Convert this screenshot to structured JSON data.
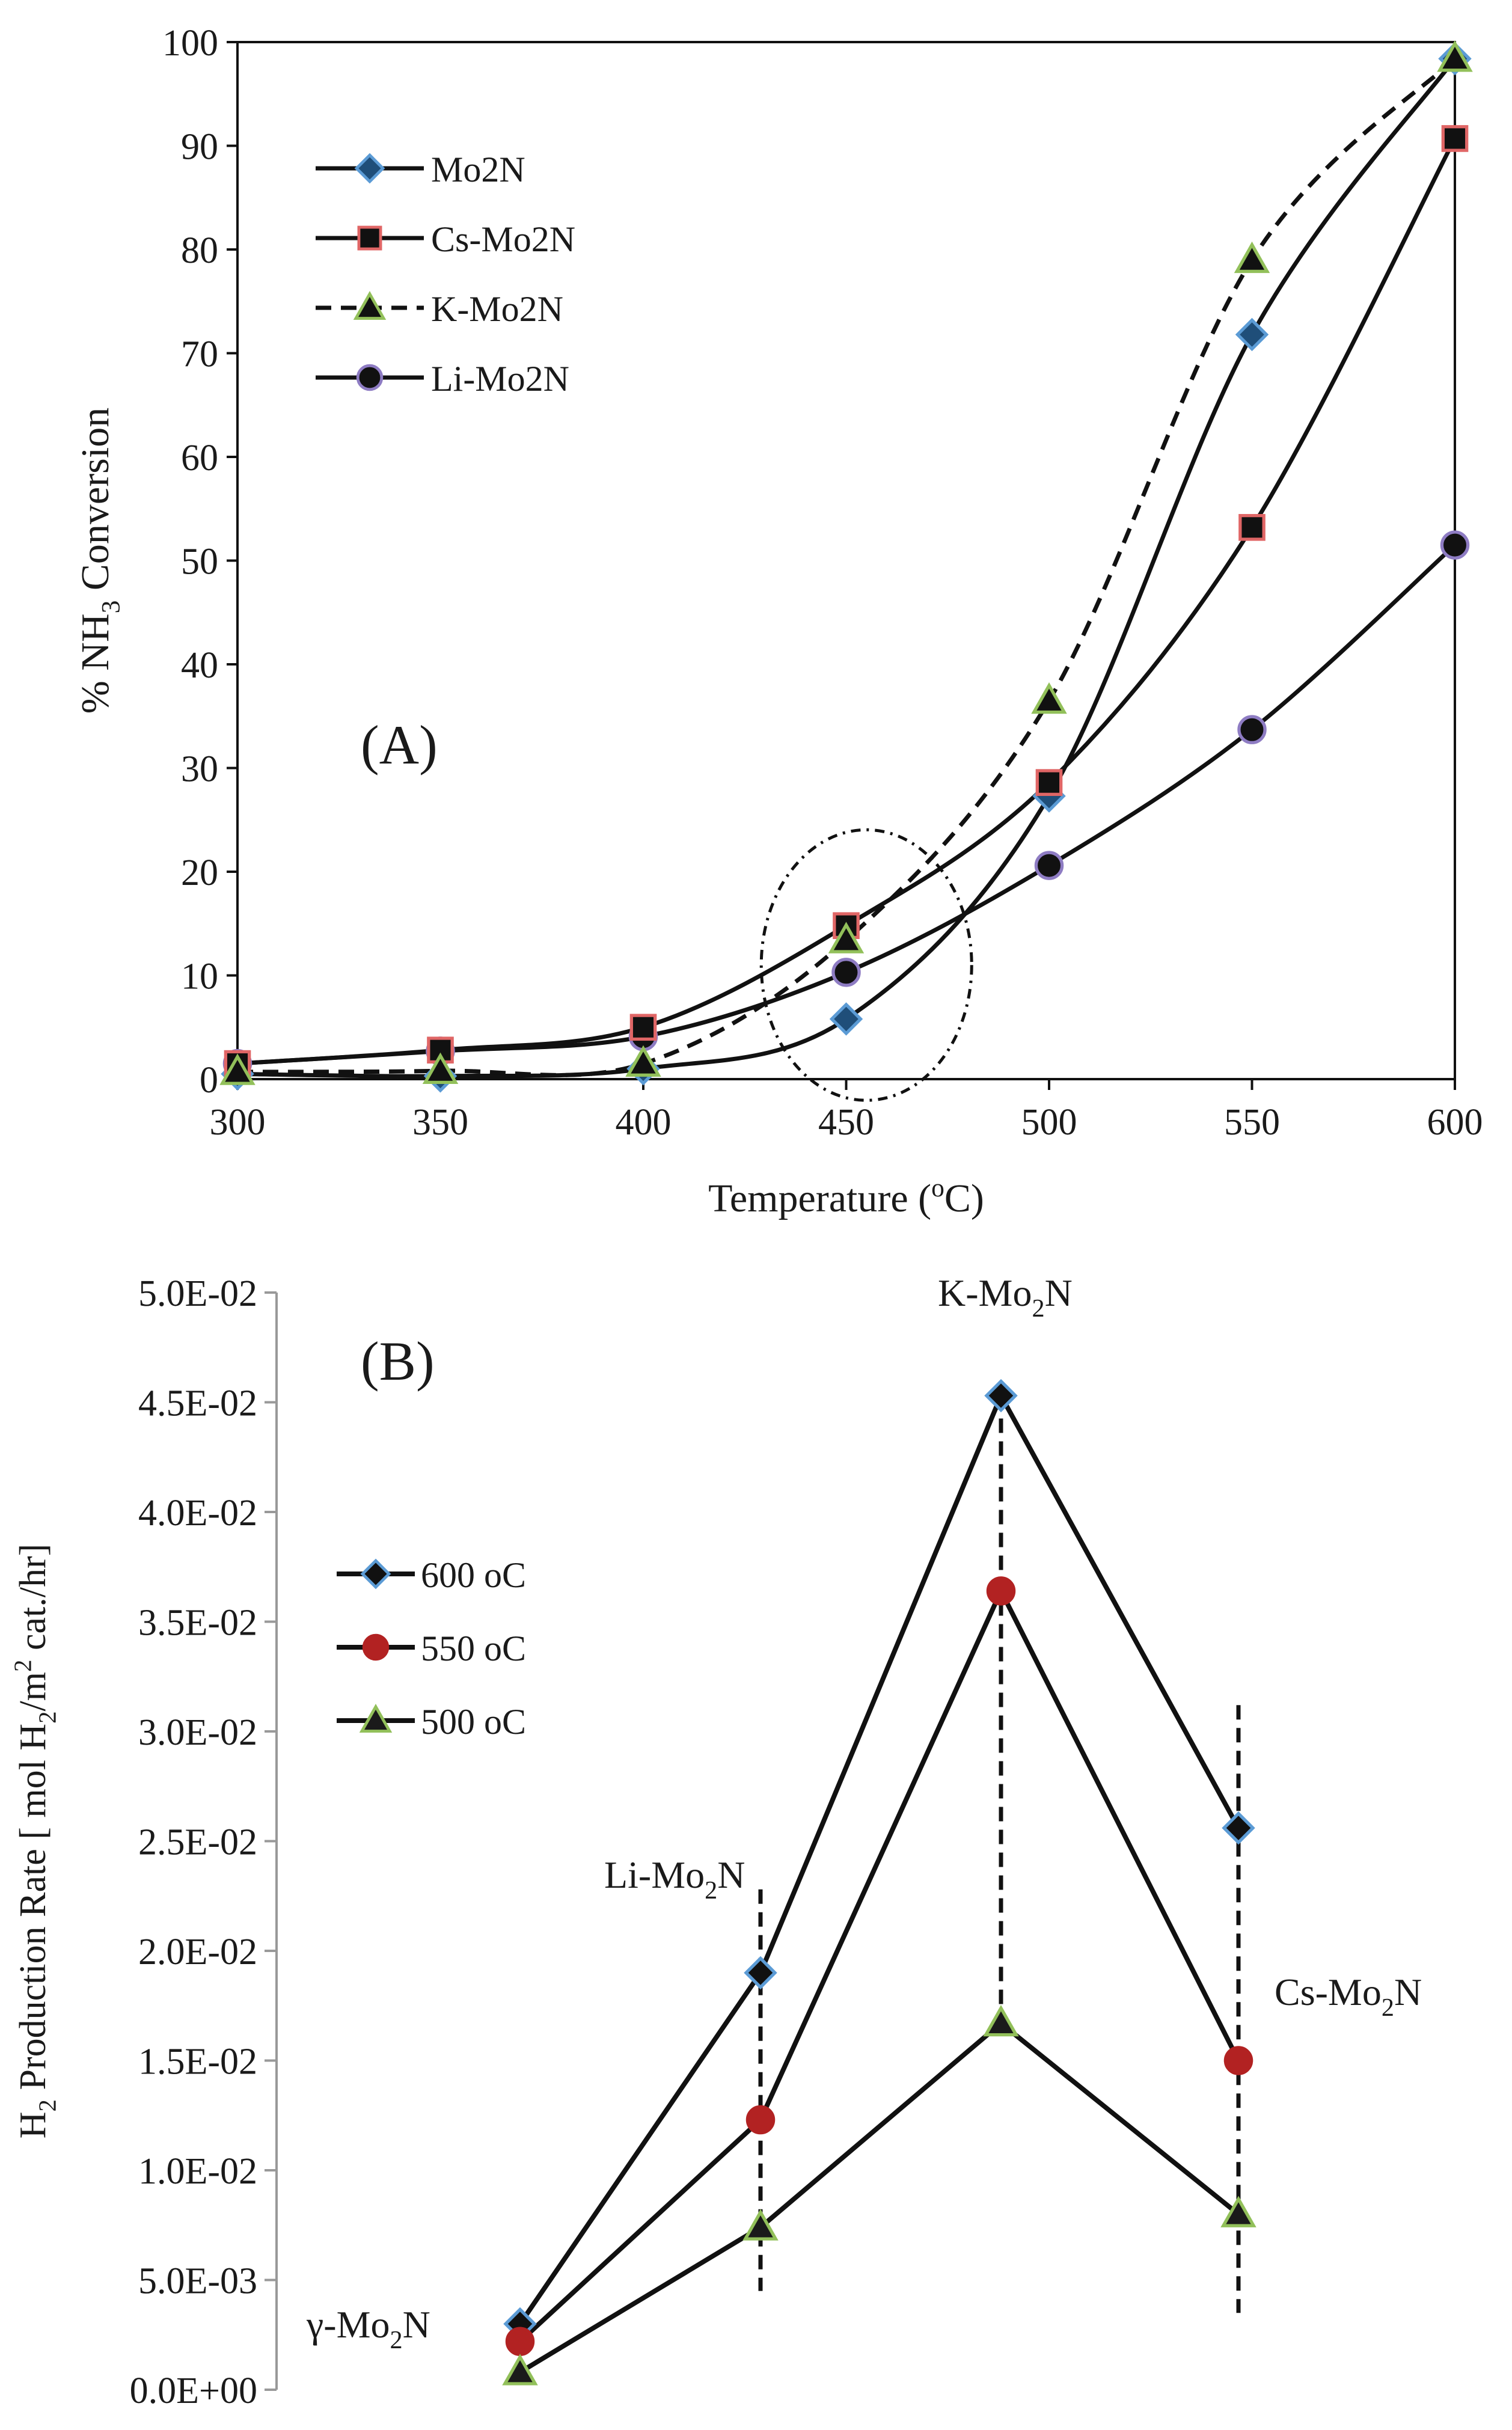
{
  "chart_data": [
    {
      "type": "line",
      "panel_label": "(A)",
      "ylabel_parts": [
        "% NH",
        "3",
        " Conversion"
      ],
      "xlabel_parts": [
        "Temperature (",
        "o",
        "C)"
      ],
      "x": [
        300,
        350,
        400,
        450,
        500,
        550,
        600
      ],
      "x_tick_labels": [
        "300",
        "350",
        "400",
        "450",
        "500",
        "550",
        "600"
      ],
      "y_tick_labels": [
        "0",
        "10",
        "20",
        "30",
        "40",
        "50",
        "60",
        "70",
        "80",
        "90",
        "100"
      ],
      "xlim": [
        300,
        600
      ],
      "ylim": [
        0,
        100
      ],
      "legend_position": "top-left",
      "series": [
        {
          "name": "Mo2N",
          "marker": "diamond",
          "dashed": false,
          "fill": "#1f4e79",
          "edge": "#5b9bd5",
          "values": [
            0.5,
            0.3,
            1.0,
            5.8,
            27.3,
            71.8,
            98.4
          ]
        },
        {
          "name": "Cs-Mo2N",
          "marker": "square",
          "dashed": false,
          "fill": "#111111",
          "edge": "#e06666",
          "values": [
            1.5,
            2.8,
            5.0,
            14.8,
            28.6,
            53.2,
            90.7
          ]
        },
        {
          "name": "K-Mo2N",
          "marker": "triangle",
          "dashed": true,
          "fill": "#111111",
          "edge": "#92c05a",
          "values": [
            0.7,
            0.8,
            1.5,
            13.4,
            36.5,
            79.0,
            98.4
          ]
        },
        {
          "name": "Li-Mo2N",
          "marker": "circle",
          "dashed": false,
          "fill": "#111111",
          "edge": "#8e7cc3",
          "values": [
            1.5,
            2.7,
            4.1,
            10.3,
            20.6,
            33.7,
            51.5
          ]
        }
      ],
      "annotation": "dashed ellipse around 450 °C"
    },
    {
      "type": "line",
      "panel_label": "(B)",
      "ylabel_parts": [
        "H",
        "2",
        " Production Rate [ mol H",
        "2",
        "/m",
        "2",
        " cat./hr]"
      ],
      "y_tick_labels": [
        "0.0E+00",
        "5.0E-03",
        "1.0E-02",
        "1.5E-02",
        "2.0E-02",
        "2.5E-02",
        "3.0E-02",
        "3.5E-02",
        "4.0E-02",
        "4.5E-02",
        "5.0E-02"
      ],
      "ylim": [
        0,
        0.05
      ],
      "categories": [
        "γ-Mo2N",
        "Li-Mo2N",
        "K-Mo2N",
        "Cs-Mo2N"
      ],
      "category_labels": [
        [
          "γ-Mo",
          "2",
          "N"
        ],
        [
          "Li-Mo",
          "2",
          "N"
        ],
        [
          "K-Mo",
          "2",
          "N"
        ],
        [
          "Cs-Mo",
          "2",
          "N"
        ]
      ],
      "legend_position": "upper-left",
      "series": [
        {
          "name": "600 oC",
          "marker": "diamond",
          "fill": "#111111",
          "edge": "#5b9bd5",
          "values": [
            0.003,
            0.019,
            0.0453,
            0.0256
          ]
        },
        {
          "name": "550 oC",
          "marker": "circle",
          "fill": "#b22222",
          "edge": "#b22222",
          "values": [
            0.0022,
            0.0123,
            0.0364,
            0.015
          ]
        },
        {
          "name": "500 oC",
          "marker": "triangle",
          "fill": "#1a1a1a",
          "edge": "#92c05a",
          "values": [
            0.0008,
            0.0074,
            0.0167,
            0.008
          ]
        }
      ]
    }
  ]
}
